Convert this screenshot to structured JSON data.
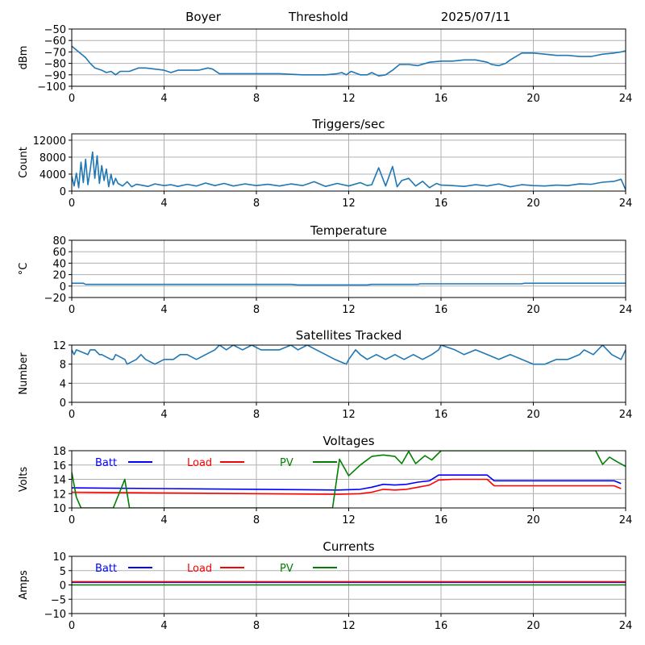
{
  "header": {
    "site": "Boyer",
    "mode": "Threshold",
    "date": "2025/07/11"
  },
  "colors": {
    "series": "#1f77b4",
    "batt": "#0000ff",
    "load": "#ff0000",
    "pv": "#008000",
    "grid": "#b0b0b0"
  },
  "chart_data": [
    {
      "id": "threshold",
      "type": "line",
      "title": "",
      "ylabel": "dBm",
      "xlim": [
        0,
        24
      ],
      "xticks": [
        0,
        4,
        8,
        12,
        16,
        20,
        24
      ],
      "ylim": [
        -100,
        -50
      ],
      "yticks": [
        -100,
        -90,
        -80,
        -70,
        -60,
        -50
      ],
      "grid": true,
      "series": [
        {
          "x": [
            0,
            0.3,
            0.6,
            0.8,
            1.0,
            1.3,
            1.5,
            1.7,
            1.9,
            2.1,
            2.5,
            2.9,
            3.2,
            3.6,
            4.0,
            4.3,
            4.6,
            5.0,
            5.5,
            5.9,
            6.1,
            6.4,
            7.0,
            8.0,
            8.5,
            9.0,
            10.0,
            11.0,
            11.5,
            11.7,
            11.9,
            12.1,
            12.5,
            12.8,
            13.0,
            13.3,
            13.6,
            13.9,
            14.2,
            14.6,
            15.0,
            15.5,
            16.0,
            16.5,
            17.0,
            17.5,
            18.0,
            18.2,
            18.5,
            18.8,
            19.0,
            19.5,
            20.0,
            20.5,
            21.0,
            21.5,
            22.0,
            22.5,
            23.0,
            23.5,
            23.8,
            24.0
          ],
          "y": [
            -65,
            -70,
            -75,
            -80,
            -84,
            -86,
            -88,
            -87,
            -90,
            -87,
            -87,
            -84,
            -84,
            -85,
            -86,
            -88,
            -86,
            -86,
            -86,
            -84,
            -85,
            -89,
            -89,
            -89,
            -89,
            -89,
            -90,
            -90,
            -89,
            -88,
            -90,
            -87,
            -90,
            -90,
            -88,
            -91,
            -90,
            -86,
            -81,
            -81,
            -82,
            -79,
            -78,
            -78,
            -77,
            -77,
            -79,
            -81,
            -82,
            -80,
            -77,
            -71,
            -71,
            -72,
            -73,
            -73,
            -74,
            -74,
            -72,
            -71,
            -70,
            -69
          ]
        }
      ]
    },
    {
      "id": "triggers",
      "type": "line",
      "title": "Triggers/sec",
      "ylabel": "Count",
      "xlim": [
        0,
        24
      ],
      "xticks": [
        0,
        4,
        8,
        12,
        16,
        20,
        24
      ],
      "ylim": [
        0,
        13500
      ],
      "yticks": [
        0,
        4000,
        8000,
        12000
      ],
      "grid": true,
      "series": [
        {
          "x": [
            0,
            0.1,
            0.2,
            0.3,
            0.4,
            0.5,
            0.6,
            0.7,
            0.8,
            0.9,
            1.0,
            1.1,
            1.2,
            1.3,
            1.4,
            1.5,
            1.6,
            1.7,
            1.8,
            1.9,
            2.0,
            2.2,
            2.4,
            2.6,
            2.8,
            3.0,
            3.3,
            3.6,
            4.0,
            4.3,
            4.6,
            5.0,
            5.4,
            5.8,
            6.2,
            6.6,
            7.0,
            7.5,
            8.0,
            8.5,
            9.0,
            9.5,
            10.0,
            10.5,
            11.0,
            11.5,
            12.0,
            12.5,
            12.8,
            13.0,
            13.3,
            13.6,
            13.9,
            14.1,
            14.3,
            14.6,
            14.9,
            15.2,
            15.5,
            15.8,
            16.0,
            16.5,
            17.0,
            17.5,
            18.0,
            18.5,
            19.0,
            19.5,
            20.0,
            20.5,
            21.0,
            21.5,
            22.0,
            22.5,
            23.0,
            23.5,
            23.8,
            24.0
          ],
          "y": [
            3500,
            1200,
            4200,
            800,
            6800,
            2000,
            7500,
            1500,
            5000,
            9200,
            3000,
            8300,
            1800,
            6000,
            2500,
            5200,
            1000,
            4000,
            1500,
            3000,
            1800,
            1200,
            2200,
            1000,
            1600,
            1400,
            1100,
            1700,
            1300,
            1500,
            1100,
            1600,
            1200,
            1900,
            1300,
            1800,
            1200,
            1700,
            1300,
            1600,
            1200,
            1700,
            1300,
            2200,
            1100,
            1800,
            1200,
            2000,
            1300,
            1500,
            5500,
            1200,
            5800,
            1000,
            2500,
            3000,
            1200,
            2300,
            800,
            1800,
            1400,
            1300,
            1100,
            1500,
            1200,
            1700,
            1000,
            1500,
            1300,
            1200,
            1400,
            1300,
            1700,
            1600,
            2100,
            2300,
            2800,
            300
          ]
        }
      ]
    },
    {
      "id": "temperature",
      "type": "line",
      "title": "Temperature",
      "ylabel": "°C",
      "xlim": [
        0,
        24
      ],
      "xticks": [
        0,
        4,
        8,
        12,
        16,
        20,
        24
      ],
      "ylim": [
        -20,
        80
      ],
      "yticks": [
        -20,
        0,
        20,
        40,
        60,
        80
      ],
      "grid": true,
      "series": [
        {
          "x": [
            0,
            0.5,
            0.6,
            4,
            8,
            9.5,
            9.8,
            11.5,
            12.8,
            13,
            15,
            15.1,
            19.5,
            19.6,
            24
          ],
          "y": [
            5,
            5,
            3,
            3,
            3,
            3,
            2,
            2,
            2,
            3,
            3,
            4,
            4,
            5,
            5
          ]
        }
      ]
    },
    {
      "id": "satellites",
      "type": "line",
      "title": "Satellites Tracked",
      "ylabel": "Number",
      "xlim": [
        0,
        24
      ],
      "xticks": [
        0,
        4,
        8,
        12,
        16,
        20,
        24
      ],
      "ylim": [
        0,
        12
      ],
      "yticks": [
        0,
        4,
        8,
        12
      ],
      "grid": true,
      "series": [
        {
          "x": [
            0,
            0.1,
            0.2,
            0.7,
            0.8,
            1.0,
            1.2,
            1.3,
            1.7,
            1.8,
            1.9,
            2.3,
            2.4,
            2.8,
            3.0,
            3.2,
            3.6,
            4.0,
            4.4,
            4.7,
            5.0,
            5.4,
            5.8,
            6.2,
            6.4,
            6.7,
            7.0,
            7.4,
            7.8,
            8.2,
            9.0,
            9.5,
            9.8,
            10.2,
            10.6,
            11.0,
            11.4,
            11.9,
            12.0,
            12.3,
            12.5,
            12.8,
            13.2,
            13.6,
            14.0,
            14.4,
            14.8,
            15.2,
            15.6,
            15.9,
            16.0,
            16.6,
            17.0,
            17.5,
            18.0,
            18.5,
            19.0,
            19.5,
            20.0,
            20.5,
            21.0,
            21.5,
            22.0,
            22.2,
            22.6,
            23.0,
            23.4,
            23.8,
            24.0
          ],
          "y": [
            11,
            10,
            11,
            10,
            11,
            11,
            10,
            10,
            9,
            9,
            10,
            9,
            8,
            9,
            10,
            9,
            8,
            9,
            9,
            10,
            10,
            9,
            10,
            11,
            12,
            11,
            12,
            11,
            12,
            11,
            11,
            12,
            11,
            12,
            11,
            10,
            9,
            8,
            9,
            11,
            10,
            9,
            10,
            9,
            10,
            9,
            10,
            9,
            10,
            11,
            12,
            11,
            10,
            11,
            10,
            9,
            10,
            9,
            8,
            8,
            9,
            9,
            10,
            11,
            10,
            12,
            10,
            9,
            11
          ]
        }
      ]
    },
    {
      "id": "voltages",
      "type": "line",
      "title": "Voltages",
      "ylabel": "Volts",
      "xlim": [
        0,
        24
      ],
      "xticks": [
        0,
        4,
        8,
        12,
        16,
        20,
        24
      ],
      "ylim": [
        10,
        18
      ],
      "yticks": [
        10,
        12,
        14,
        16,
        18
      ],
      "grid": true,
      "legend": "inside-top",
      "series": [
        {
          "name": "Batt",
          "color": "#0000ff",
          "x": [
            0,
            4,
            8,
            11.5,
            12.5,
            13.0,
            13.5,
            14.0,
            14.5,
            15.0,
            15.5,
            15.9,
            16.5,
            17.5,
            18.0,
            18.3,
            20,
            22,
            23.5,
            23.8
          ],
          "y": [
            12.8,
            12.7,
            12.6,
            12.5,
            12.6,
            12.9,
            13.3,
            13.2,
            13.3,
            13.6,
            13.8,
            14.6,
            14.6,
            14.6,
            14.6,
            13.8,
            13.8,
            13.8,
            13.8,
            13.4
          ]
        },
        {
          "name": "Load",
          "color": "#ff0000",
          "x": [
            0,
            4,
            8,
            11.5,
            12.5,
            13.0,
            13.5,
            14.0,
            14.5,
            15.0,
            15.5,
            15.9,
            16.5,
            17.5,
            18.0,
            18.3,
            20,
            22,
            23.5,
            23.8
          ],
          "y": [
            12.2,
            12.1,
            12.0,
            11.9,
            12.0,
            12.2,
            12.6,
            12.5,
            12.6,
            12.9,
            13.2,
            13.9,
            14.0,
            14.0,
            14.0,
            13.1,
            13.1,
            13.1,
            13.1,
            12.7
          ]
        },
        {
          "name": "PV",
          "color": "#008000",
          "x": [
            0,
            0.2,
            0.4,
            1.8,
            2.3,
            2.5,
            11.3,
            11.6,
            12.0,
            12.5,
            13.0,
            13.5,
            14.0,
            14.3,
            14.6,
            14.9,
            15.3,
            15.6,
            16.0,
            16.3,
            22.7,
            23.0,
            23.3,
            23.6,
            24.0
          ],
          "y": [
            15.0,
            11.5,
            10.0,
            10.0,
            14.0,
            10.0,
            10.0,
            16.8,
            14.5,
            16.0,
            17.2,
            17.4,
            17.2,
            16.2,
            17.9,
            16.2,
            17.3,
            16.7,
            18.0,
            18.0,
            18.0,
            16.1,
            17.1,
            16.5,
            15.8
          ]
        }
      ]
    },
    {
      "id": "currents",
      "type": "line",
      "title": "Currents",
      "ylabel": "Amps",
      "xlim": [
        0,
        24
      ],
      "xticks": [
        0,
        4,
        8,
        12,
        16,
        20,
        24
      ],
      "ylim": [
        -10,
        10
      ],
      "yticks": [
        -10,
        -5,
        0,
        5,
        10
      ],
      "grid": true,
      "legend": "inside-top",
      "series": [
        {
          "name": "Batt",
          "color": "#0000ff",
          "x": [
            0,
            24
          ],
          "y": [
            0.9,
            0.9
          ]
        },
        {
          "name": "Load",
          "color": "#ff0000",
          "x": [
            0,
            24
          ],
          "y": [
            1.1,
            1.1
          ]
        },
        {
          "name": "PV",
          "color": "#008000",
          "x": [
            0,
            24
          ],
          "y": [
            0.0,
            0.0
          ]
        }
      ]
    }
  ]
}
